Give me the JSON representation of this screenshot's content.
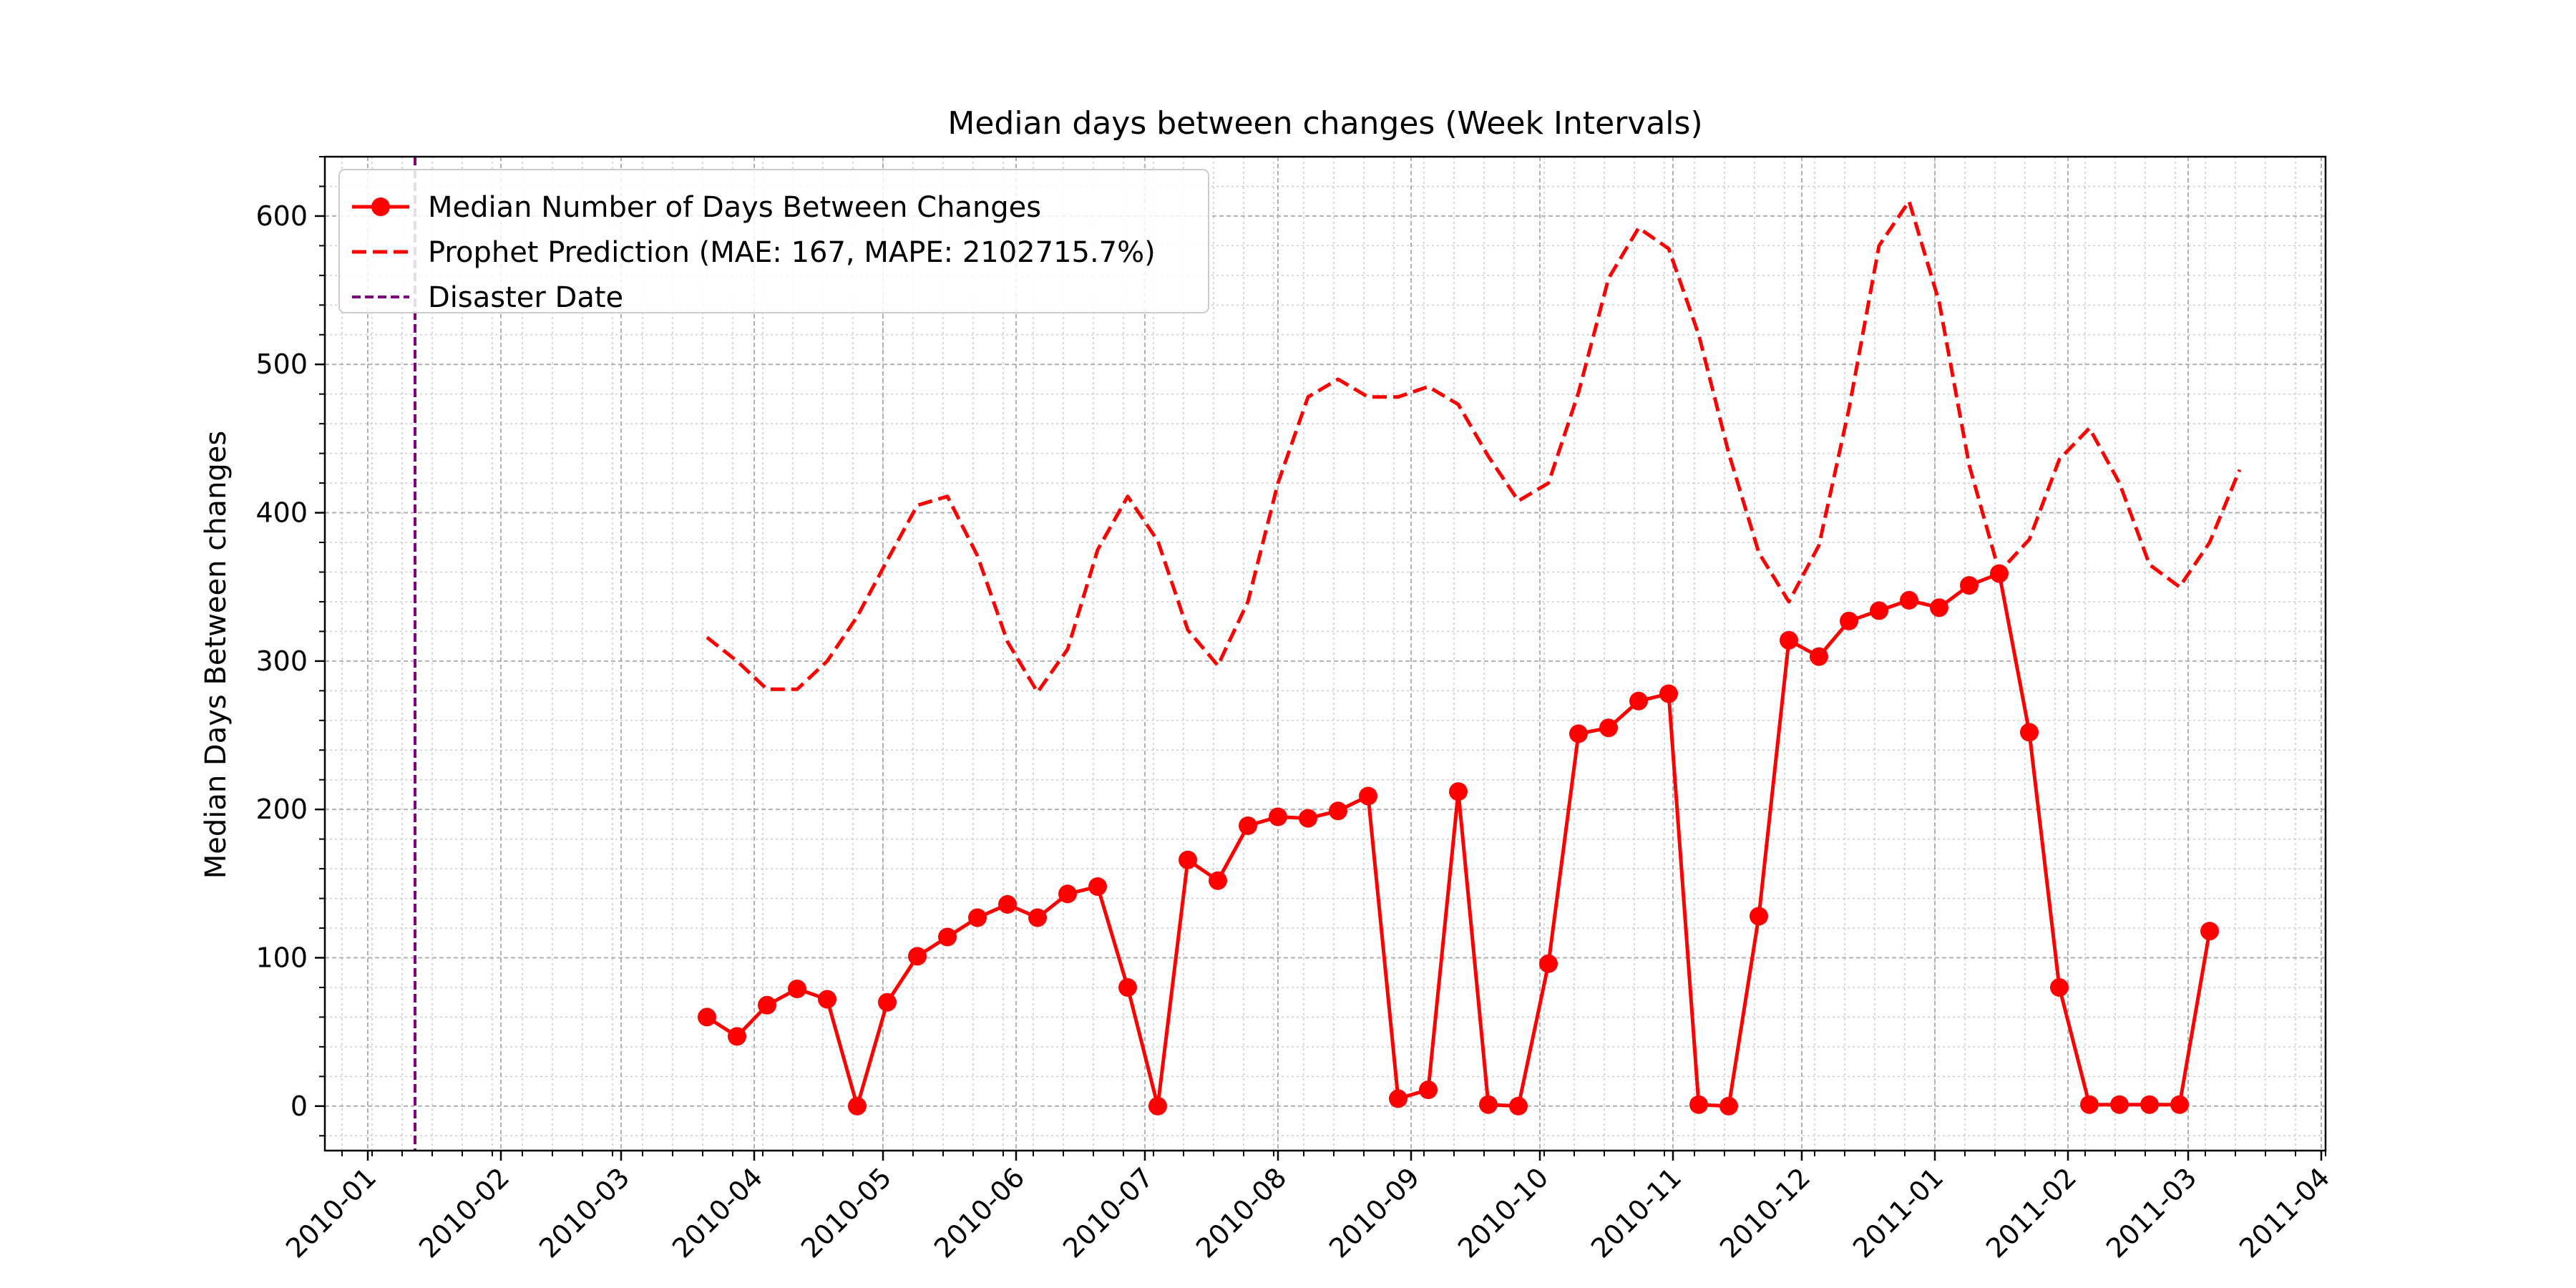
{
  "chart_data": {
    "type": "line",
    "title": "Median days between changes (Week Intervals)",
    "xlabel": "",
    "ylabel": "Median Days Between changes",
    "x_ticks": [
      "2010-01",
      "2010-02",
      "2010-03",
      "2010-04",
      "2010-05",
      "2010-06",
      "2010-07",
      "2010-08",
      "2010-09",
      "2010-10",
      "2010-11",
      "2010-12",
      "2011-01",
      "2011-02",
      "2011-03",
      "2011-04"
    ],
    "y_ticks": [
      0,
      100,
      200,
      300,
      400,
      500,
      600
    ],
    "xlim": [
      "2009-12-22",
      "2011-04-02"
    ],
    "ylim": [
      -30,
      640
    ],
    "grid": true,
    "legend_position": "upper left",
    "annotations": {
      "disaster_date": "2010-01-12"
    },
    "series": [
      {
        "name": "Median Number of Days Between Changes",
        "style": "solid line with circle markers",
        "color": "#ff0000",
        "dates": [
          "2010-03-21",
          "2010-03-28",
          "2010-04-04",
          "2010-04-11",
          "2010-04-18",
          "2010-04-25",
          "2010-05-02",
          "2010-05-09",
          "2010-05-16",
          "2010-05-23",
          "2010-05-30",
          "2010-06-06",
          "2010-06-13",
          "2010-06-20",
          "2010-06-27",
          "2010-07-04",
          "2010-07-11",
          "2010-07-18",
          "2010-07-25",
          "2010-08-01",
          "2010-08-08",
          "2010-08-15",
          "2010-08-22",
          "2010-08-29",
          "2010-09-05",
          "2010-09-12",
          "2010-09-19",
          "2010-09-26",
          "2010-10-03",
          "2010-10-10",
          "2010-10-17",
          "2010-10-24",
          "2010-10-31",
          "2010-11-07",
          "2010-11-14",
          "2010-11-21",
          "2010-11-28",
          "2010-12-05",
          "2010-12-12",
          "2010-12-19",
          "2010-12-26",
          "2011-01-02",
          "2011-01-09",
          "2011-01-16",
          "2011-01-23",
          "2011-01-30",
          "2011-02-06",
          "2011-02-13",
          "2011-02-20",
          "2011-02-27",
          "2011-03-06"
        ],
        "values": [
          60,
          47,
          68,
          79,
          72,
          0,
          70,
          101,
          114,
          127,
          136,
          127,
          143,
          148,
          80,
          0,
          166,
          152,
          189,
          195,
          194,
          199,
          209,
          5,
          11,
          212,
          1,
          0,
          96,
          251,
          255,
          273,
          278,
          1,
          0,
          128,
          314,
          303,
          327,
          334,
          341,
          336,
          351,
          359,
          252,
          80,
          1,
          1,
          1,
          1,
          118
        ]
      },
      {
        "name": "Prophet Prediction (MAE: 167, MAPE: 2102715.7%)",
        "style": "dashed line",
        "color": "#ff0000",
        "dates": [
          "2010-03-21",
          "2010-03-28",
          "2010-04-04",
          "2010-04-11",
          "2010-04-18",
          "2010-04-25",
          "2010-05-02",
          "2010-05-09",
          "2010-05-16",
          "2010-05-23",
          "2010-05-30",
          "2010-06-06",
          "2010-06-13",
          "2010-06-20",
          "2010-06-27",
          "2010-07-04",
          "2010-07-11",
          "2010-07-18",
          "2010-07-25",
          "2010-08-01",
          "2010-08-08",
          "2010-08-15",
          "2010-08-22",
          "2010-08-29",
          "2010-09-05",
          "2010-09-12",
          "2010-09-19",
          "2010-09-26",
          "2010-10-03",
          "2010-10-10",
          "2010-10-17",
          "2010-10-24",
          "2010-10-31",
          "2010-11-07",
          "2010-11-14",
          "2010-11-21",
          "2010-11-28",
          "2010-12-05",
          "2010-12-12",
          "2010-12-19",
          "2010-12-26",
          "2011-01-02",
          "2011-01-09",
          "2011-01-16",
          "2011-01-23",
          "2011-01-30",
          "2011-02-06",
          "2011-02-13",
          "2011-02-20",
          "2011-02-27",
          "2011-03-06",
          "2011-03-13"
        ],
        "values": [
          316,
          300,
          281,
          281,
          300,
          330,
          368,
          405,
          411,
          371,
          313,
          279,
          308,
          375,
          411,
          381,
          321,
          297,
          340,
          420,
          478,
          490,
          478,
          478,
          485,
          473,
          438,
          408,
          420,
          481,
          558,
          592,
          578,
          520,
          440,
          373,
          340,
          378,
          470,
          580,
          610,
          542,
          432,
          360,
          382,
          436,
          457,
          420,
          365,
          350,
          380,
          429
        ]
      },
      {
        "name": "Disaster Date",
        "style": "vertical dashed line",
        "color": "#800080"
      }
    ]
  }
}
